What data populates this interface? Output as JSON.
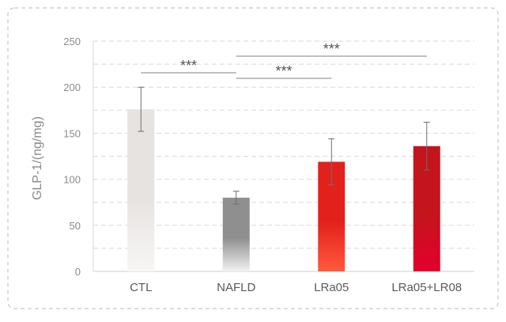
{
  "chart_data": {
    "type": "bar",
    "title": "",
    "xlabel": "",
    "ylabel": "GLP-1/(ng/mg)",
    "ylim": [
      0,
      250
    ],
    "yticks": [
      0,
      50,
      100,
      150,
      200,
      250
    ],
    "grid": true,
    "categories": [
      "CTL",
      "NAFLD",
      "LRa05",
      "LRa05+LR08"
    ],
    "values": [
      176,
      80,
      119,
      136
    ],
    "errors": [
      24,
      7,
      25,
      26
    ],
    "bar_colors": [
      [
        "#e7e3e1",
        "#f7f6f5"
      ],
      [
        "#8f8f8f",
        "#f2f2f2"
      ],
      [
        "#e3211c",
        "#ff5a3c"
      ],
      [
        "#c4141c",
        "#e4002c"
      ]
    ],
    "significance": [
      {
        "from": 0,
        "to": 1,
        "label": "***"
      },
      {
        "from": 1,
        "to": 2,
        "label": "***"
      },
      {
        "from": 1,
        "to": 3,
        "label": "***"
      }
    ]
  }
}
